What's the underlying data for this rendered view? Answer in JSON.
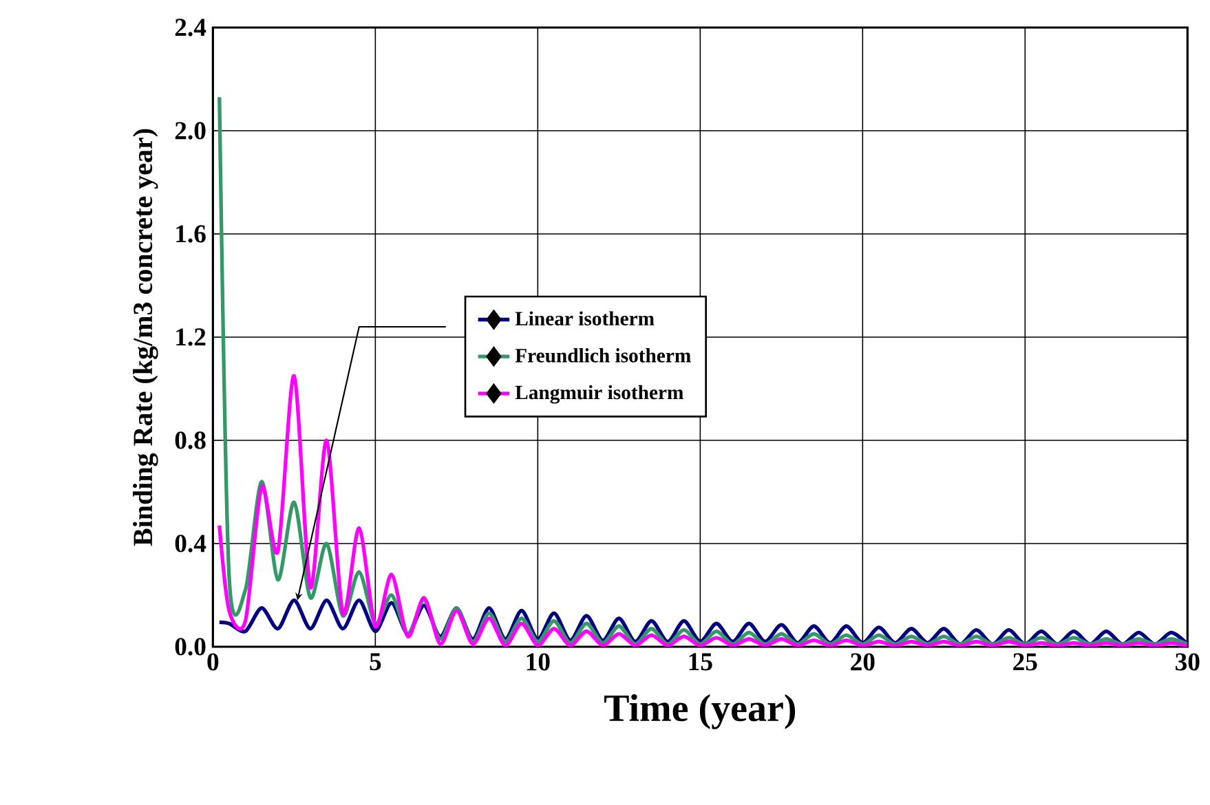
{
  "chart_data": {
    "type": "line",
    "xlabel": "Time (year)",
    "ylabel": "Binding Rate (kg/m3 concrete year)",
    "xlim": [
      0,
      30
    ],
    "ylim": [
      0,
      2.4
    ],
    "xticks": [
      0,
      5,
      10,
      15,
      20,
      25,
      30
    ],
    "yticks": [
      {
        "value": 0,
        "label": "0.0"
      },
      {
        "value": 0.4,
        "label": "0.4"
      },
      {
        "value": 0.8,
        "label": "0.8"
      },
      {
        "value": 1.2,
        "label": "1.2"
      },
      {
        "value": 1.6,
        "label": "1.6"
      },
      {
        "value": 2.0,
        "label": "2.0"
      },
      {
        "value": 2.4,
        "label": "2.4"
      }
    ],
    "grid": true,
    "legend": "center",
    "marker": "none",
    "line_style": "solid",
    "x": [
      0.2,
      0.5,
      1,
      1.5,
      2,
      2.5,
      3,
      3.5,
      4,
      4.5,
      5,
      5.5,
      6,
      6.5,
      7,
      7.5,
      8,
      8.5,
      9,
      9.5,
      10,
      10.5,
      11,
      11.5,
      12,
      12.5,
      13,
      13.5,
      14,
      14.5,
      15,
      15.5,
      16,
      16.5,
      17,
      17.5,
      18,
      18.5,
      19,
      19.5,
      20,
      20.5,
      21,
      21.5,
      22,
      22.5,
      23,
      23.5,
      24,
      24.5,
      25,
      25.5,
      26,
      26.5,
      27,
      27.5,
      28,
      28.5,
      29,
      29.5,
      30
    ],
    "series": [
      {
        "name": "Linear isotherm",
        "color": "#000080",
        "values": [
          0.095,
          0.09,
          0.06,
          0.15,
          0.07,
          0.18,
          0.07,
          0.18,
          0.07,
          0.18,
          0.06,
          0.17,
          0.05,
          0.16,
          0.04,
          0.15,
          0.03,
          0.15,
          0.03,
          0.14,
          0.03,
          0.13,
          0.025,
          0.12,
          0.025,
          0.11,
          0.02,
          0.1,
          0.02,
          0.1,
          0.02,
          0.09,
          0.02,
          0.09,
          0.02,
          0.085,
          0.015,
          0.08,
          0.015,
          0.08,
          0.015,
          0.075,
          0.015,
          0.07,
          0.015,
          0.07,
          0.01,
          0.065,
          0.01,
          0.065,
          0.01,
          0.06,
          0.01,
          0.06,
          0.01,
          0.06,
          0.01,
          0.055,
          0.01,
          0.055,
          0.01
        ]
      },
      {
        "name": "Freundlich isotherm",
        "color": "#339966",
        "values": [
          2.13,
          0.27,
          0.22,
          0.64,
          0.26,
          0.56,
          0.19,
          0.4,
          0.12,
          0.29,
          0.09,
          0.2,
          0.05,
          0.18,
          0.03,
          0.15,
          0.02,
          0.13,
          0.02,
          0.11,
          0.02,
          0.1,
          0.015,
          0.09,
          0.015,
          0.08,
          0.01,
          0.07,
          0.01,
          0.065,
          0.01,
          0.06,
          0.01,
          0.055,
          0.01,
          0.05,
          0.01,
          0.05,
          0.01,
          0.045,
          0.01,
          0.045,
          0.01,
          0.04,
          0.01,
          0.04,
          0.01,
          0.04,
          0.01,
          0.035,
          0.01,
          0.035,
          0.01,
          0.035,
          0.01,
          0.03,
          0.01,
          0.03,
          0.01,
          0.03,
          0.01
        ]
      },
      {
        "name": "Langmuir isotherm",
        "color": "#ff00ff",
        "values": [
          0.47,
          0.14,
          0.1,
          0.62,
          0.37,
          1.05,
          0.23,
          0.8,
          0.13,
          0.46,
          0.08,
          0.28,
          0.04,
          0.19,
          0.01,
          0.14,
          0.01,
          0.11,
          0.005,
          0.09,
          0.005,
          0.07,
          0.005,
          0.06,
          0.005,
          0.05,
          0.005,
          0.045,
          0.005,
          0.04,
          0.005,
          0.035,
          0.005,
          0.03,
          0.005,
          0.03,
          0.005,
          0.025,
          0.005,
          0.025,
          0.005,
          0.02,
          0.005,
          0.02,
          0.005,
          0.02,
          0.005,
          0.02,
          0.005,
          0.02,
          0.005,
          0.015,
          0.005,
          0.015,
          0.005,
          0.015,
          0.005,
          0.015,
          0.005,
          0.015,
          0.005
        ]
      }
    ]
  }
}
